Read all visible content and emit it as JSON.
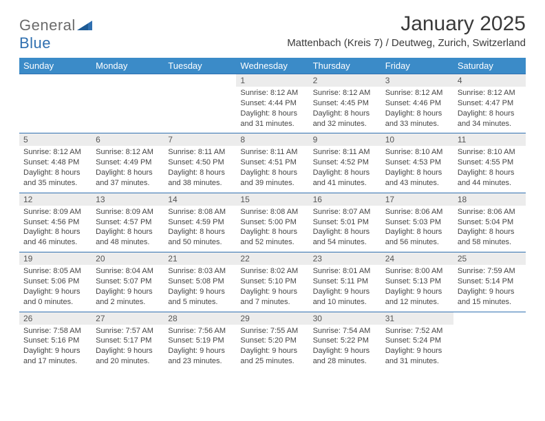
{
  "brand": {
    "part1": "General",
    "part2": "Blue"
  },
  "title": "January 2025",
  "location": "Mattenbach (Kreis 7) / Deutweg, Zurich, Switzerland",
  "header_color": "#3b8bc8",
  "border_color": "#2f6fb0",
  "daynum_bg": "#ececec",
  "text_color": "#444444",
  "font_size_title": 30,
  "font_size_location": 15,
  "font_size_header": 13,
  "font_size_cell": 11,
  "weekdays": [
    "Sunday",
    "Monday",
    "Tuesday",
    "Wednesday",
    "Thursday",
    "Friday",
    "Saturday"
  ],
  "weeks": [
    {
      "nums": [
        "",
        "",
        "",
        "1",
        "2",
        "3",
        "4"
      ],
      "details": [
        "",
        "",
        "",
        "Sunrise: 8:12 AM\nSunset: 4:44 PM\nDaylight: 8 hours and 31 minutes.",
        "Sunrise: 8:12 AM\nSunset: 4:45 PM\nDaylight: 8 hours and 32 minutes.",
        "Sunrise: 8:12 AM\nSunset: 4:46 PM\nDaylight: 8 hours and 33 minutes.",
        "Sunrise: 8:12 AM\nSunset: 4:47 PM\nDaylight: 8 hours and 34 minutes."
      ]
    },
    {
      "nums": [
        "5",
        "6",
        "7",
        "8",
        "9",
        "10",
        "11"
      ],
      "details": [
        "Sunrise: 8:12 AM\nSunset: 4:48 PM\nDaylight: 8 hours and 35 minutes.",
        "Sunrise: 8:12 AM\nSunset: 4:49 PM\nDaylight: 8 hours and 37 minutes.",
        "Sunrise: 8:11 AM\nSunset: 4:50 PM\nDaylight: 8 hours and 38 minutes.",
        "Sunrise: 8:11 AM\nSunset: 4:51 PM\nDaylight: 8 hours and 39 minutes.",
        "Sunrise: 8:11 AM\nSunset: 4:52 PM\nDaylight: 8 hours and 41 minutes.",
        "Sunrise: 8:10 AM\nSunset: 4:53 PM\nDaylight: 8 hours and 43 minutes.",
        "Sunrise: 8:10 AM\nSunset: 4:55 PM\nDaylight: 8 hours and 44 minutes."
      ]
    },
    {
      "nums": [
        "12",
        "13",
        "14",
        "15",
        "16",
        "17",
        "18"
      ],
      "details": [
        "Sunrise: 8:09 AM\nSunset: 4:56 PM\nDaylight: 8 hours and 46 minutes.",
        "Sunrise: 8:09 AM\nSunset: 4:57 PM\nDaylight: 8 hours and 48 minutes.",
        "Sunrise: 8:08 AM\nSunset: 4:59 PM\nDaylight: 8 hours and 50 minutes.",
        "Sunrise: 8:08 AM\nSunset: 5:00 PM\nDaylight: 8 hours and 52 minutes.",
        "Sunrise: 8:07 AM\nSunset: 5:01 PM\nDaylight: 8 hours and 54 minutes.",
        "Sunrise: 8:06 AM\nSunset: 5:03 PM\nDaylight: 8 hours and 56 minutes.",
        "Sunrise: 8:06 AM\nSunset: 5:04 PM\nDaylight: 8 hours and 58 minutes."
      ]
    },
    {
      "nums": [
        "19",
        "20",
        "21",
        "22",
        "23",
        "24",
        "25"
      ],
      "details": [
        "Sunrise: 8:05 AM\nSunset: 5:06 PM\nDaylight: 9 hours and 0 minutes.",
        "Sunrise: 8:04 AM\nSunset: 5:07 PM\nDaylight: 9 hours and 2 minutes.",
        "Sunrise: 8:03 AM\nSunset: 5:08 PM\nDaylight: 9 hours and 5 minutes.",
        "Sunrise: 8:02 AM\nSunset: 5:10 PM\nDaylight: 9 hours and 7 minutes.",
        "Sunrise: 8:01 AM\nSunset: 5:11 PM\nDaylight: 9 hours and 10 minutes.",
        "Sunrise: 8:00 AM\nSunset: 5:13 PM\nDaylight: 9 hours and 12 minutes.",
        "Sunrise: 7:59 AM\nSunset: 5:14 PM\nDaylight: 9 hours and 15 minutes."
      ]
    },
    {
      "nums": [
        "26",
        "27",
        "28",
        "29",
        "30",
        "31",
        ""
      ],
      "details": [
        "Sunrise: 7:58 AM\nSunset: 5:16 PM\nDaylight: 9 hours and 17 minutes.",
        "Sunrise: 7:57 AM\nSunset: 5:17 PM\nDaylight: 9 hours and 20 minutes.",
        "Sunrise: 7:56 AM\nSunset: 5:19 PM\nDaylight: 9 hours and 23 minutes.",
        "Sunrise: 7:55 AM\nSunset: 5:20 PM\nDaylight: 9 hours and 25 minutes.",
        "Sunrise: 7:54 AM\nSunset: 5:22 PM\nDaylight: 9 hours and 28 minutes.",
        "Sunrise: 7:52 AM\nSunset: 5:24 PM\nDaylight: 9 hours and 31 minutes.",
        ""
      ]
    }
  ]
}
